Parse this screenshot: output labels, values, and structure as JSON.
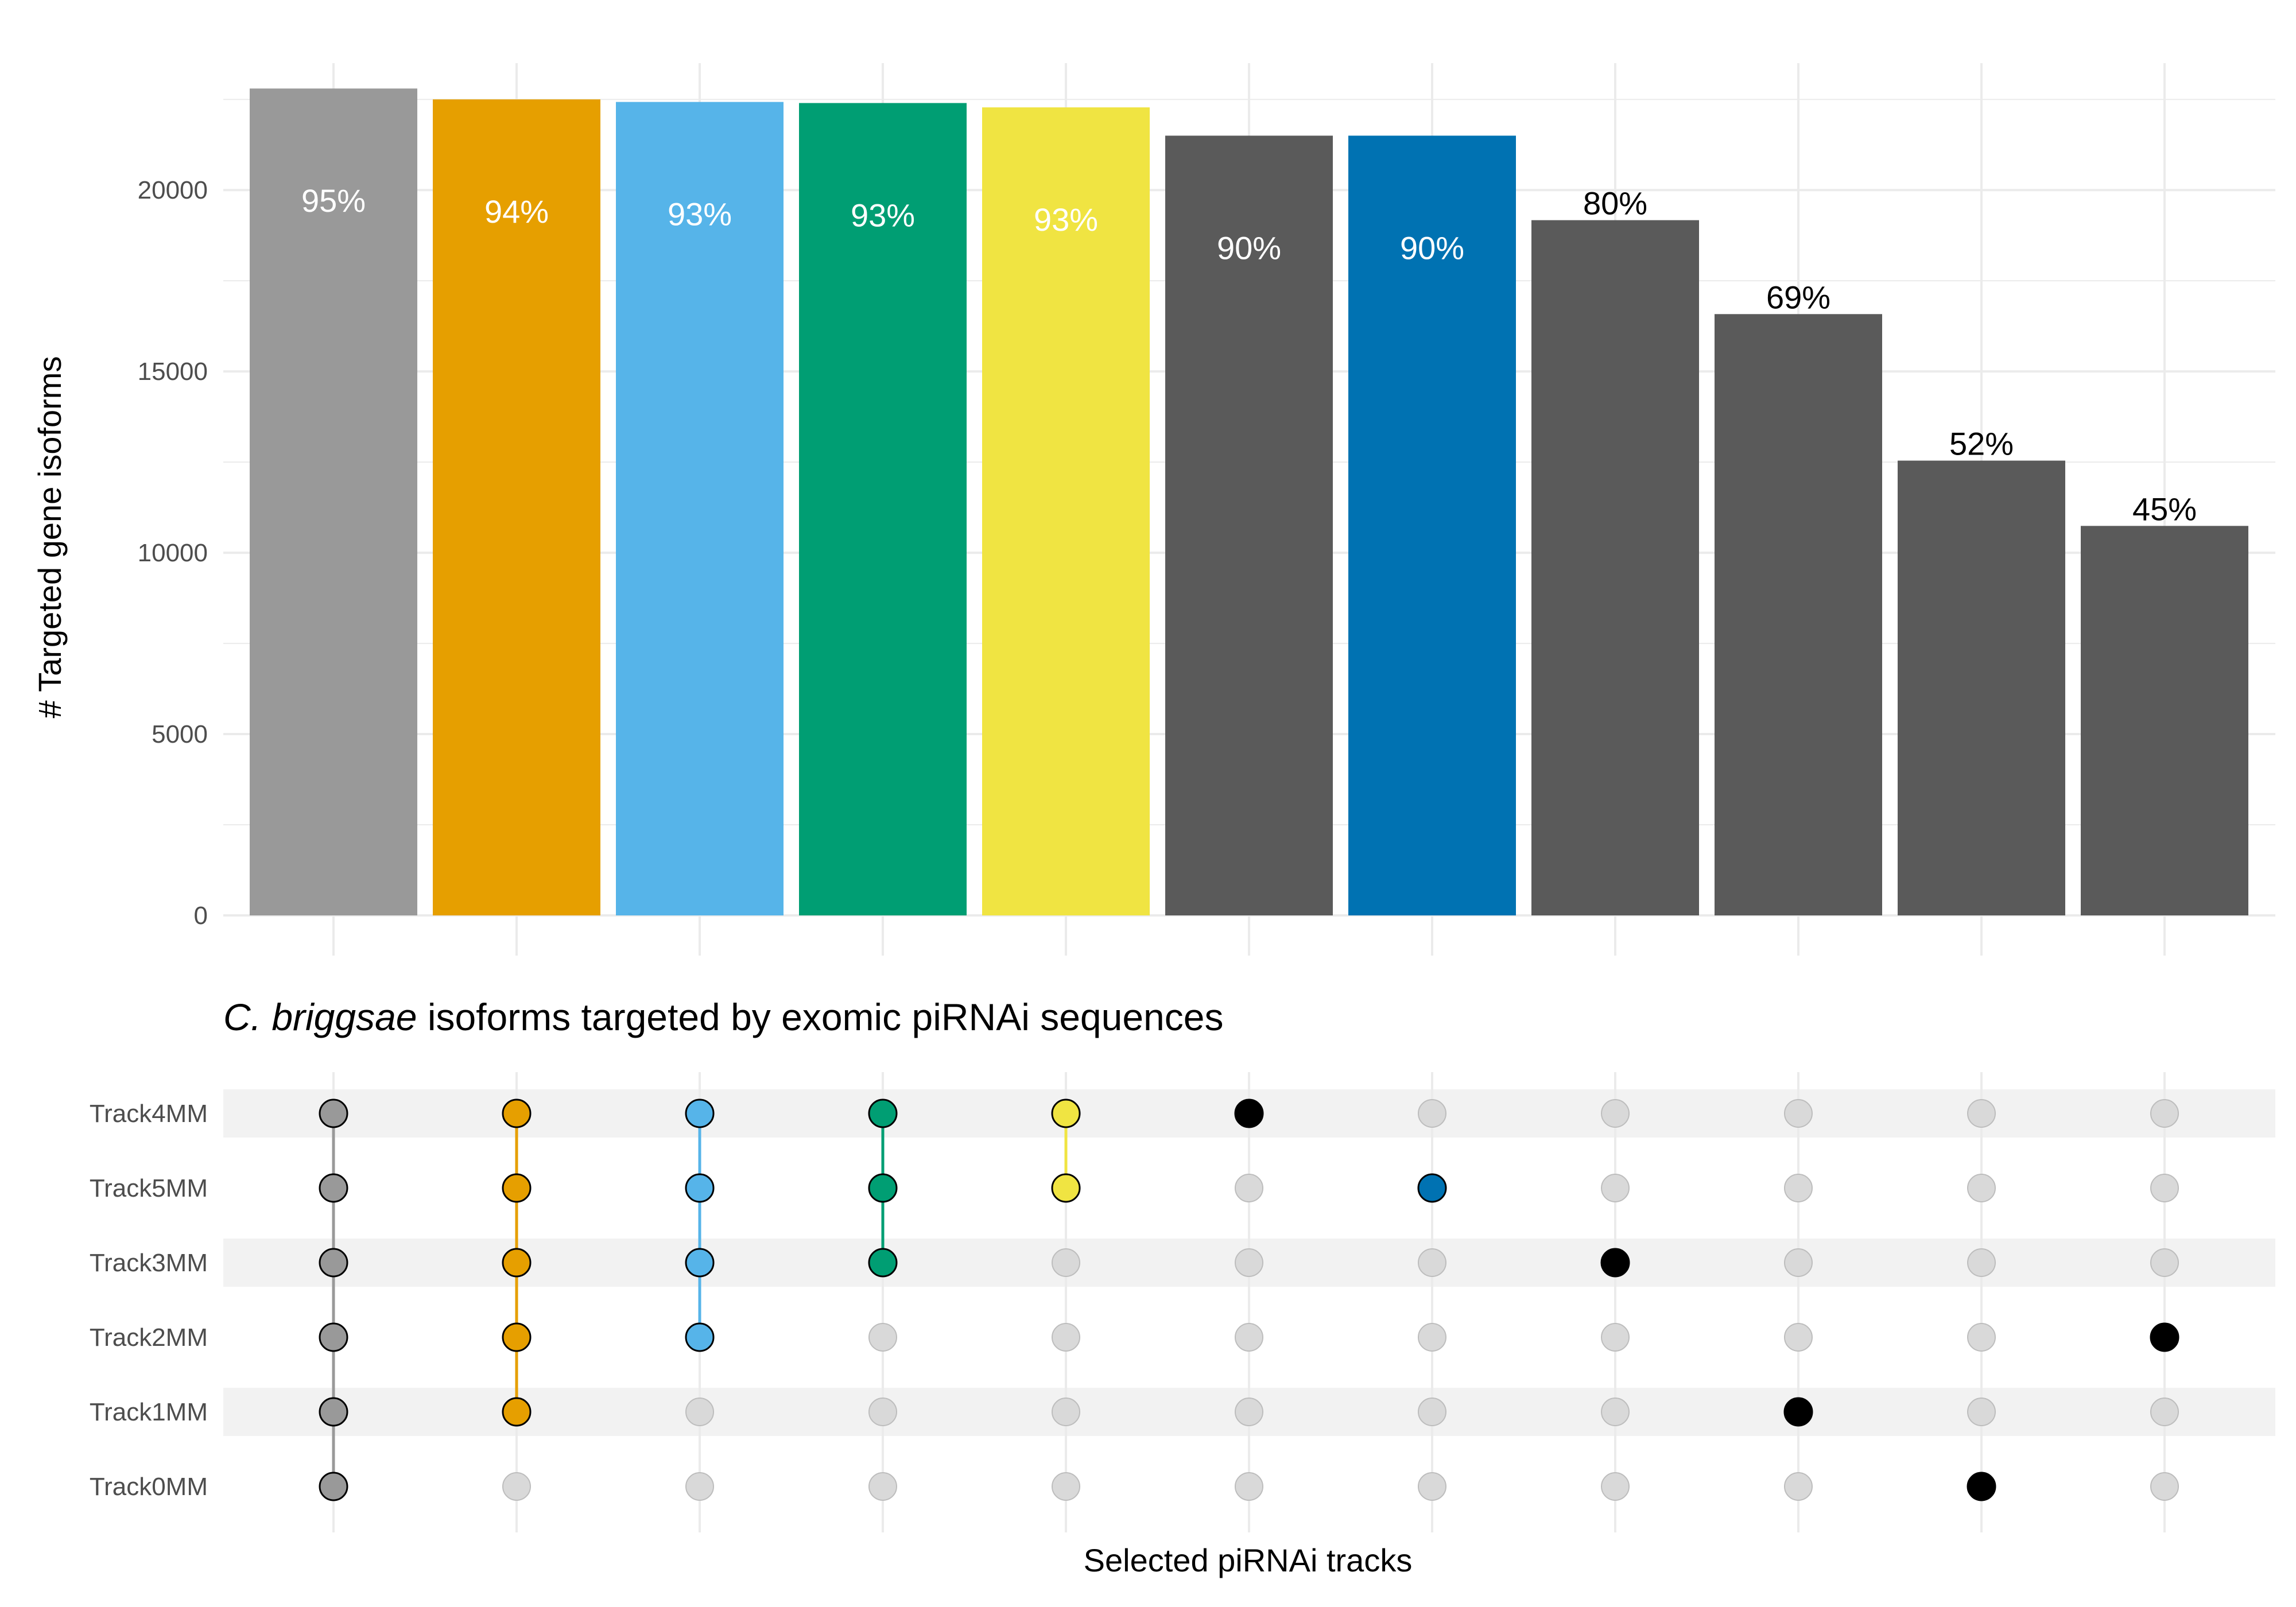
{
  "chart_data": {
    "type": "bar",
    "title_italic": "C. briggsae",
    "title_rest": " isoforms targeted by exomic piRNAi sequences",
    "ylabel": "# Targeted gene isoforms",
    "xlabel": "Selected piRNAi tracks",
    "ylim": [
      0,
      23500
    ],
    "yticks": [
      0,
      5000,
      10000,
      15000,
      20000
    ],
    "grid": true,
    "values": [
      22800,
      22500,
      22430,
      22400,
      22280,
      21500,
      21500,
      19170,
      16580,
      12540,
      10740
    ],
    "labels": [
      "95%",
      "94%",
      "93%",
      "93%",
      "93%",
      "90%",
      "90%",
      "80%",
      "69%",
      "52%",
      "45%"
    ],
    "colors": [
      "#999999",
      "#E69F00",
      "#56B4E9",
      "#009E73",
      "#F0E442",
      "#5A5A5A",
      "#0072B2",
      "#5A5A5A",
      "#5A5A5A",
      "#5A5A5A",
      "#5A5A5A"
    ],
    "label_inside": [
      true,
      true,
      true,
      true,
      true,
      true,
      true,
      false,
      false,
      false,
      false
    ],
    "dot_colors": [
      "#999999",
      "#E69F00",
      "#56B4E9",
      "#009E73",
      "#F0E442",
      "#000000",
      "#0072B2",
      "#000000",
      "#000000",
      "#000000",
      "#000000"
    ],
    "tracks": [
      "Track4MM",
      "Track5MM",
      "Track3MM",
      "Track2MM",
      "Track1MM",
      "Track0MM"
    ],
    "sets": [
      [
        "Track4MM",
        "Track5MM",
        "Track3MM",
        "Track2MM",
        "Track1MM",
        "Track0MM"
      ],
      [
        "Track4MM",
        "Track5MM",
        "Track3MM",
        "Track2MM",
        "Track1MM"
      ],
      [
        "Track4MM",
        "Track5MM",
        "Track3MM",
        "Track2MM"
      ],
      [
        "Track4MM",
        "Track5MM",
        "Track3MM"
      ],
      [
        "Track4MM",
        "Track5MM"
      ],
      [
        "Track4MM"
      ],
      [
        "Track5MM"
      ],
      [
        "Track3MM"
      ],
      [
        "Track1MM"
      ],
      [
        "Track0MM"
      ],
      [
        "Track2MM"
      ]
    ]
  }
}
